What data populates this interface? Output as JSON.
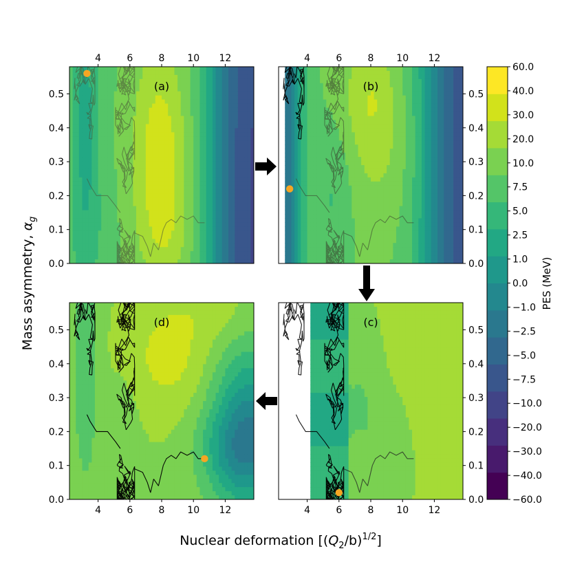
{
  "chart_data": {
    "type": "heatmap",
    "xlabel": "Nuclear deformation [(Q₂/b)¹ᐟ²]",
    "xlabel_main": "Nuclear deformation [(",
    "xlabel_q": "Q",
    "xlabel_sub": "2",
    "xlabel_mid": "/b)",
    "xlabel_sup": "1/2",
    "xlabel_end": "]",
    "ylabel_main": "Mass asymmetry, ",
    "ylabel_alpha": "α",
    "ylabel_sub": "g",
    "xlim": [
      2.2,
      13.8
    ],
    "ylim": [
      0.0,
      0.58
    ],
    "x_ticks": [
      4,
      6,
      8,
      10,
      12
    ],
    "x_tick_labels": [
      "4",
      "6",
      "8",
      "10",
      "12"
    ],
    "y_ticks": [
      0.0,
      0.1,
      0.2,
      0.3,
      0.4,
      0.5
    ],
    "y_tick_labels": [
      "0.0",
      "0.1",
      "0.2",
      "0.3",
      "0.4",
      "0.5"
    ],
    "colorbar": {
      "label": "PES (MeV)",
      "levels": [
        "−60.0",
        "−40.0",
        "−30.0",
        "−20.0",
        "−10.0",
        "−7.5",
        "−5.0",
        "−2.5",
        "−1.0",
        "0.0",
        "1.0",
        "2.5",
        "5.0",
        "7.5",
        "10.0",
        "20.0",
        "30.0",
        "40.0",
        "60.0"
      ],
      "colors": [
        "#440154",
        "#481a6c",
        "#472f7d",
        "#414487",
        "#39568c",
        "#31688e",
        "#2a788e",
        "#23888e",
        "#1f988b",
        "#22a884",
        "#35b779",
        "#54c568",
        "#7ad151",
        "#a5db36",
        "#d2e21b",
        "#fde725"
      ]
    },
    "panels": [
      {
        "label": "(a)",
        "marker": {
          "x": 3.3,
          "y": 0.56
        },
        "track_shade": "#4a5a3a"
      },
      {
        "label": "(b)",
        "marker": {
          "x": 2.9,
          "y": 0.22
        },
        "track_shade": "#3a4a30"
      },
      {
        "label": "(c)",
        "marker": {
          "x": 6.0,
          "y": 0.02
        },
        "track_shade": "#222222"
      },
      {
        "label": "(d)",
        "marker": {
          "x": 10.7,
          "y": 0.12
        },
        "track_shade": "#000000"
      }
    ],
    "marker_color": "#f5a623",
    "flow": [
      "(a) → (b)",
      "(b) → (c)",
      "(c) → (d)"
    ]
  }
}
